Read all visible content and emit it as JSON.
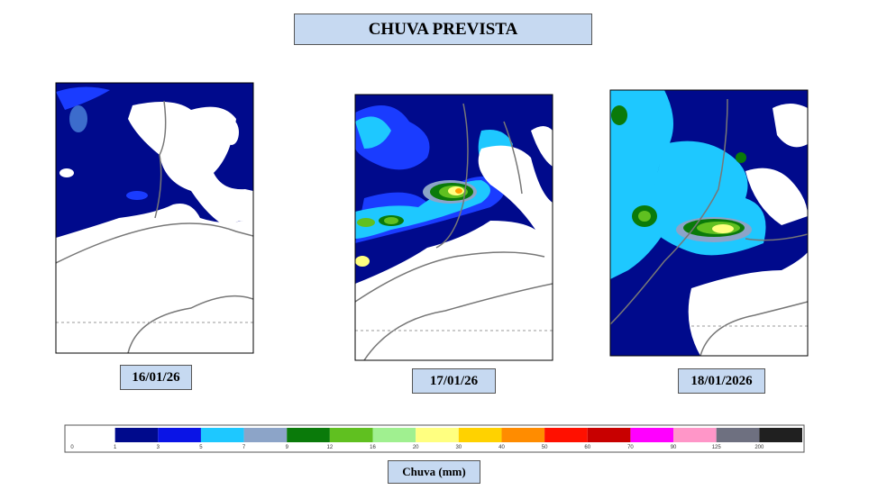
{
  "header": {
    "title": "CHUVA PREVISTA"
  },
  "maps": [
    {
      "date": "16/01/26"
    },
    {
      "date": "17/01/26"
    },
    {
      "date": "18/01/2026"
    }
  ],
  "legend": {
    "title": "Chuva (mm)",
    "ticks": [
      0,
      1,
      3,
      5,
      7,
      9,
      12,
      16,
      20,
      30,
      40,
      50,
      60,
      70,
      90,
      125,
      200
    ],
    "colors": [
      "#ffffff",
      "#000a8c",
      "#0a14e6",
      "#1ec8ff",
      "#8ca4c8",
      "#0a7a0a",
      "#60c020",
      "#a0f090",
      "#ffff80",
      "#ffd200",
      "#ff8c00",
      "#ff1000",
      "#c80000",
      "#ff00ff",
      "#ff96c8",
      "#6e7080",
      "#202020"
    ]
  }
}
